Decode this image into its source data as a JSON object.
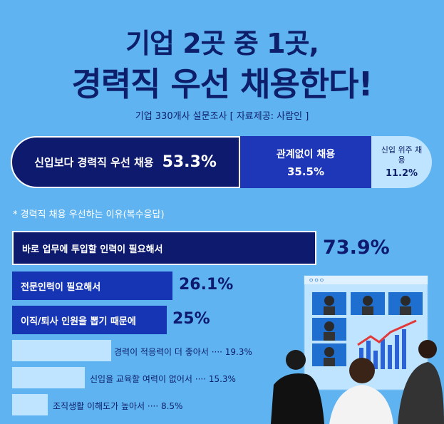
{
  "title_line1": "기업 2곳 중 1곳,",
  "title_line2": "경력직 우선 채용한다!",
  "subtitle": "기업 330개사 설문조사 [ 자료제공: 사람인 ]",
  "chart_data": [
    {
      "type": "bar",
      "orientation": "horizontal-stacked",
      "categories": [
        "신입보다 경력직 우선 채용",
        "관계없이 채용",
        "신입 위주 채용"
      ],
      "values": [
        53.3,
        35.5,
        11.2
      ],
      "value_labels": [
        "53.3%",
        "35.5%",
        "11.2%"
      ],
      "colors": [
        "#0d1a6e",
        "#1e37b8",
        "#bfe4ff"
      ]
    },
    {
      "type": "bar",
      "orientation": "horizontal",
      "note": "* 경력직 채용 우선하는 이유(복수응답)",
      "categories": [
        "바로 업무에 투입할 인력이 필요해서",
        "전문인력이 필요해서",
        "이직/퇴사 인원을 뽑기 때문에",
        "경력이 적응력이 더 좋아서",
        "신입을 교육할 여력이 없어서",
        "조직생활 이해도가  높아서"
      ],
      "values": [
        73.9,
        26.1,
        25.0,
        19.3,
        15.3,
        8.5
      ],
      "value_labels": [
        "73.9%",
        "26.1%",
        "25%",
        "19.3%",
        "15.3%",
        "8.5%"
      ],
      "colors": [
        "#0d1a6e",
        "#1535b5",
        "#1535b5",
        "#bfe4ff",
        "#bfe4ff",
        "#bfe4ff"
      ]
    }
  ],
  "illustration": {
    "window_title": "ㅇㅇㅇ",
    "colors": {
      "screen": "#bfe4ff",
      "card": "#1e6fd0",
      "bar": "#2b63d6",
      "line": "#e23a3a"
    }
  }
}
